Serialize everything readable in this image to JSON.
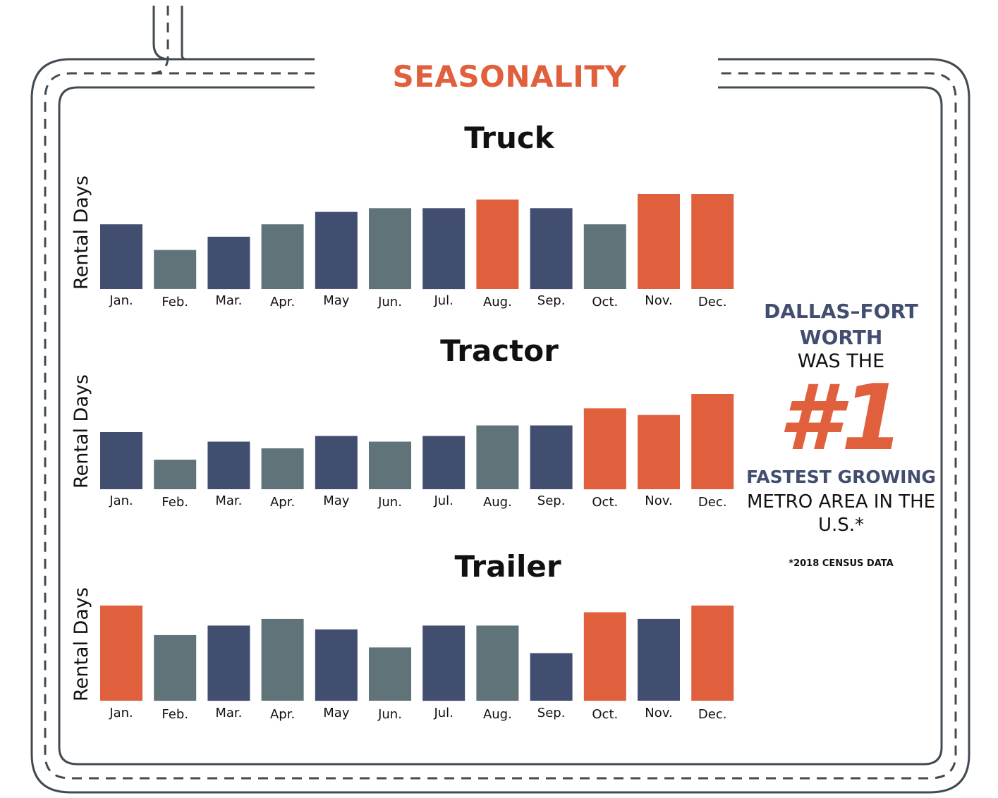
{
  "title": "SEASONALITY",
  "colors": {
    "navy": "#424e70",
    "slate": "#607378",
    "orange": "#e0603e",
    "road": "#424b52"
  },
  "chart_data": [
    {
      "type": "bar",
      "title": "Truck",
      "ylabel": "Rental Days",
      "ylim": [
        0,
        10
      ],
      "categories": [
        "Jan.",
        "Feb.",
        "Mar.",
        "Apr.",
        "May",
        "Jun.",
        "Jul.",
        "Aug.",
        "Sep.",
        "Oct.",
        "Nov.",
        "Dec."
      ],
      "values": [
        6.8,
        4.1,
        5.5,
        6.8,
        8.1,
        8.5,
        8.5,
        9.4,
        8.5,
        6.8,
        10,
        10
      ],
      "colors": [
        "navy",
        "slate",
        "navy",
        "slate",
        "navy",
        "slate",
        "navy",
        "orange",
        "navy",
        "slate",
        "orange",
        "orange"
      ]
    },
    {
      "type": "bar",
      "title": "Tractor",
      "ylabel": "Rental Days",
      "ylim": [
        0,
        10
      ],
      "categories": [
        "Jan.",
        "Feb.",
        "Mar.",
        "Apr.",
        "May",
        "Jun.",
        "Jul.",
        "Aug.",
        "Sep.",
        "Oct.",
        "Nov.",
        "Dec."
      ],
      "values": [
        6,
        3.1,
        5,
        4.3,
        5.6,
        5,
        5.6,
        6.7,
        6.7,
        8.5,
        7.8,
        10
      ],
      "colors": [
        "navy",
        "slate",
        "navy",
        "slate",
        "navy",
        "slate",
        "navy",
        "slate",
        "navy",
        "orange",
        "orange",
        "orange"
      ]
    },
    {
      "type": "bar",
      "title": "Trailer",
      "ylabel": "Rental Days",
      "ylim": [
        0,
        10
      ],
      "categories": [
        "Jan.",
        "Feb.",
        "Mar.",
        "Apr.",
        "May",
        "Jun.",
        "Jul.",
        "Aug.",
        "Sep.",
        "Oct.",
        "Nov.",
        "Dec."
      ],
      "values": [
        10,
        6.9,
        7.9,
        8.6,
        7.5,
        5.6,
        7.9,
        7.9,
        5,
        9.3,
        8.6,
        10
      ],
      "colors": [
        "orange",
        "slate",
        "navy",
        "slate",
        "navy",
        "slate",
        "navy",
        "slate",
        "navy",
        "orange",
        "navy",
        "orange"
      ]
    }
  ],
  "callout": {
    "line1": "DALLAS–FORT WORTH",
    "line2": "WAS THE",
    "big": "#1",
    "line3": "FASTEST GROWING",
    "line4": "METRO AREA IN THE U.S.*",
    "note": "*2018 CENSUS DATA"
  }
}
